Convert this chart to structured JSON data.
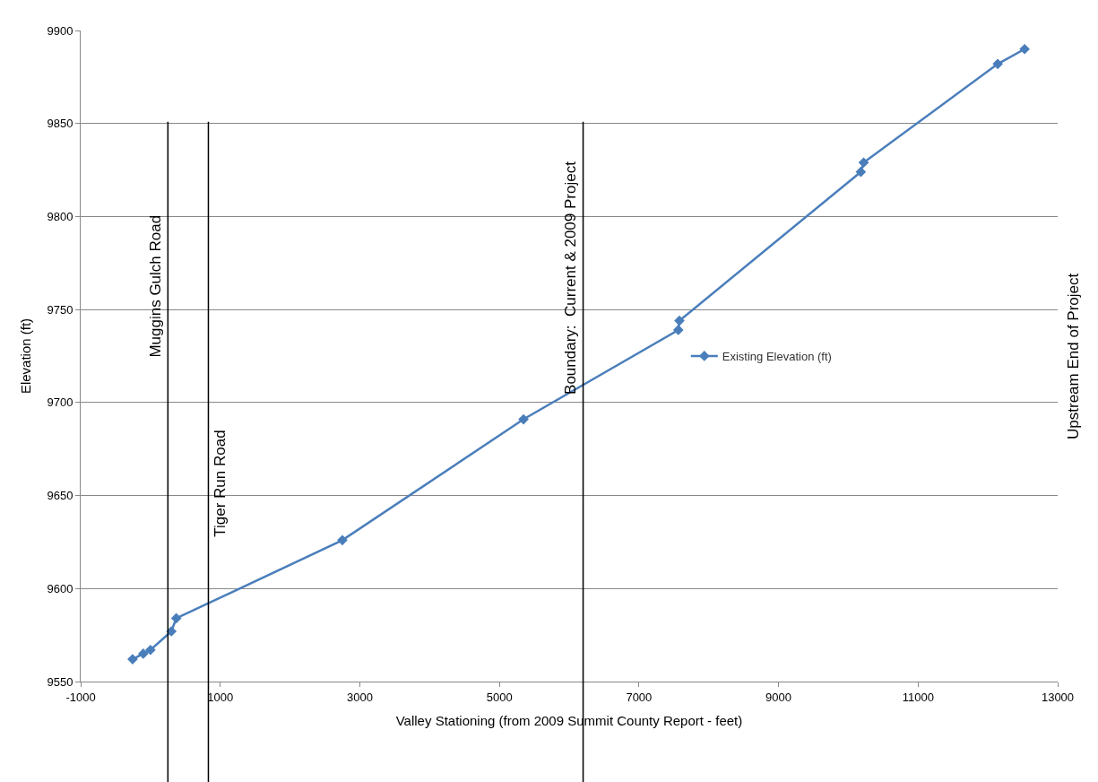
{
  "chart_data": {
    "type": "line",
    "xlabel": "Valley Stationing (from 2009 Summit County Report - feet)",
    "ylabel": "Elevation (ft)",
    "series": [
      {
        "name": "Existing Elevation (ft)",
        "color": "#4a7ebb",
        "x": [
          -256,
          -103,
          0,
          300,
          370,
          2750,
          5346,
          7564,
          7580,
          10179,
          10220,
          12141,
          12526
        ],
        "values": [
          9562,
          9565,
          9567,
          9577,
          9584,
          9626,
          9691,
          9739,
          9744,
          9824,
          9829,
          9882,
          9890
        ]
      }
    ],
    "xlim": [
      -1000,
      13000
    ],
    "xticks": [
      -1000,
      1000,
      3000,
      5000,
      7000,
      9000,
      11000,
      13000
    ],
    "ylim": [
      9550,
      9900
    ],
    "yticks": [
      9550,
      9600,
      9650,
      9700,
      9750,
      9800,
      9850,
      9900
    ],
    "ref_lines": [
      {
        "axis": "x",
        "value": 250,
        "label": "Muggins Gulch Road",
        "color": "#000000"
      },
      {
        "axis": "x",
        "value": 830,
        "label": "Tiger Run Road",
        "color": "#000000"
      },
      {
        "axis": "x",
        "value": 6200,
        "label": "Boundary:  Current & 2009 Project",
        "color": "#000000"
      }
    ],
    "annotations": [
      "Upstream End of Project"
    ],
    "grid": "y",
    "legend": "right",
    "marker": "diamond",
    "line_style": "solid"
  }
}
